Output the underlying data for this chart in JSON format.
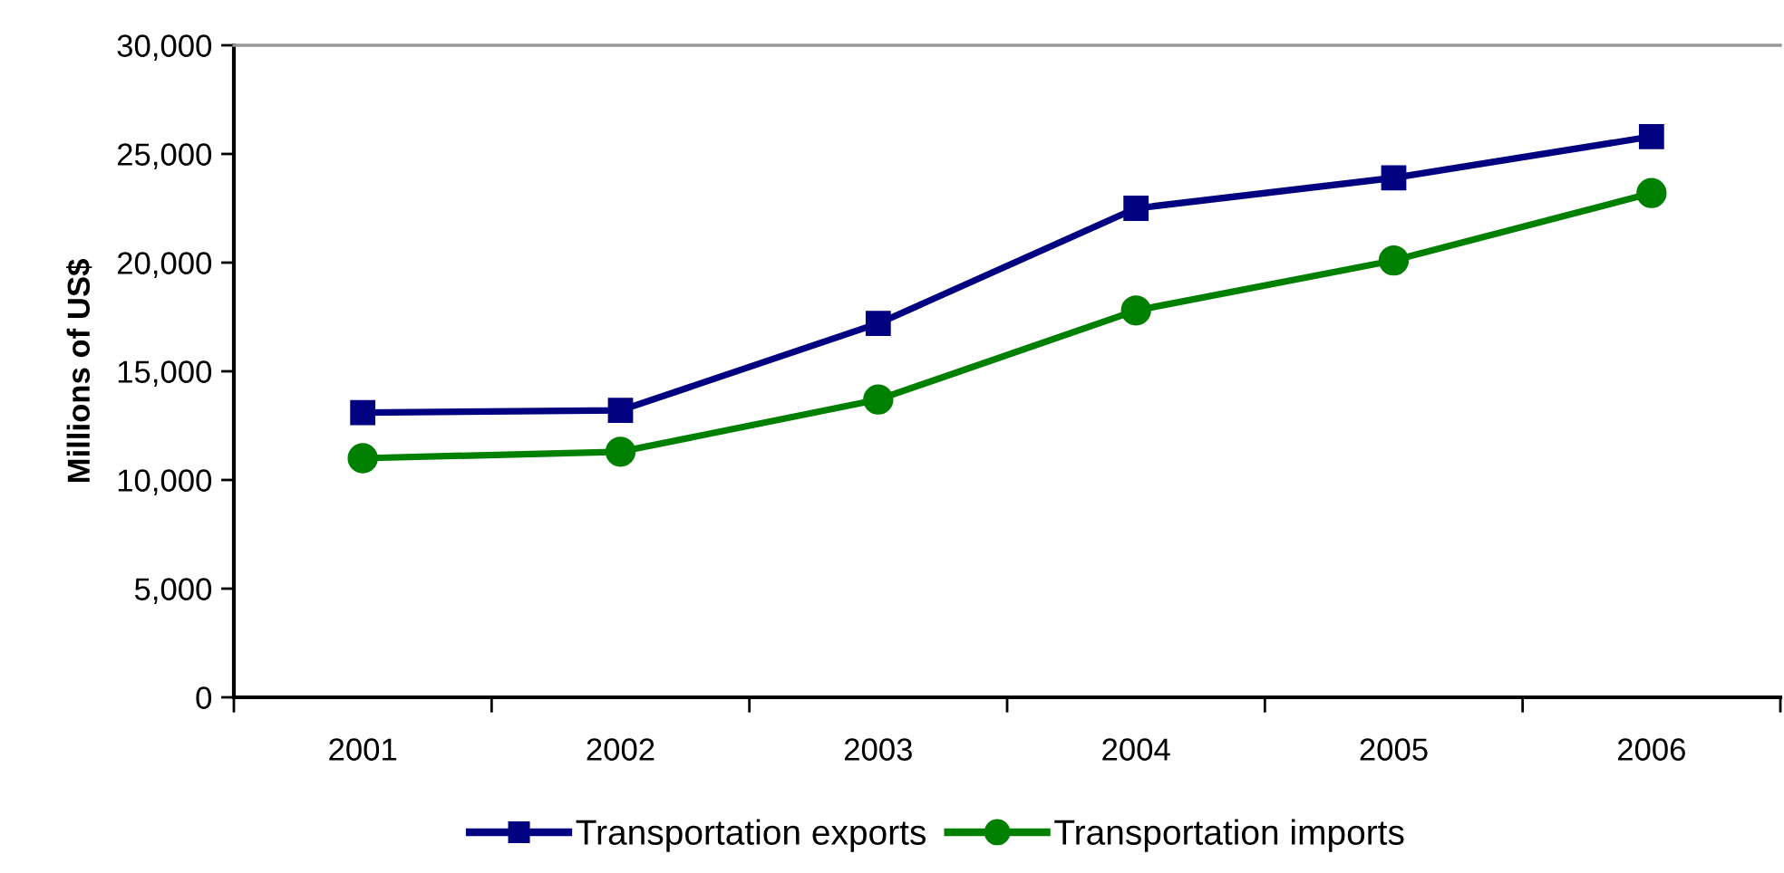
{
  "chart_data": {
    "type": "line",
    "ylabel": "Millions of US$",
    "categories": [
      "2001",
      "2002",
      "2003",
      "2004",
      "2005",
      "2006"
    ],
    "series": [
      {
        "name": "Transportation exports",
        "color": "#000080",
        "marker": "square",
        "values": [
          13100,
          13200,
          17200,
          22500,
          23900,
          25800
        ]
      },
      {
        "name": "Transportation imports",
        "color": "#008000",
        "marker": "circle",
        "values": [
          11000,
          11300,
          13700,
          17800,
          20100,
          23200
        ]
      }
    ],
    "ylim": [
      0,
      30000
    ],
    "yticks": [
      {
        "value": 0,
        "label": "0"
      },
      {
        "value": 5000,
        "label": "5,000"
      },
      {
        "value": 10000,
        "label": "10,000"
      },
      {
        "value": 15000,
        "label": "15,000"
      },
      {
        "value": 20000,
        "label": "20,000"
      },
      {
        "value": 25000,
        "label": "25,000"
      },
      {
        "value": 30000,
        "label": "30,000"
      }
    ],
    "grid": false,
    "legend": "bottom",
    "line_style": "solid"
  }
}
